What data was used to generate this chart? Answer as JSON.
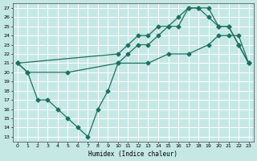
{
  "xlabel": "Humidex (Indice chaleur)",
  "xlim": [
    -0.5,
    23.5
  ],
  "ylim": [
    12.5,
    27.5
  ],
  "yticks": [
    13,
    14,
    15,
    16,
    17,
    18,
    19,
    20,
    21,
    22,
    23,
    24,
    25,
    26,
    27
  ],
  "xticks": [
    0,
    1,
    2,
    3,
    4,
    5,
    6,
    7,
    8,
    9,
    10,
    11,
    12,
    13,
    14,
    15,
    16,
    17,
    18,
    19,
    20,
    21,
    22,
    23
  ],
  "bg_color": "#c5e8e5",
  "grid_color": "#ffffff",
  "line_color": "#1e7060",
  "line1_x": [
    0,
    1,
    2,
    3,
    4,
    5,
    6,
    7,
    8,
    9,
    10,
    11,
    12,
    13,
    14,
    15,
    16,
    17,
    18,
    19,
    20,
    21,
    22,
    23
  ],
  "line1_y": [
    21,
    20,
    17,
    17,
    16,
    15,
    14,
    13,
    16,
    18,
    21,
    22,
    23,
    23,
    24,
    25,
    25,
    27,
    27,
    26,
    25,
    25,
    23,
    21
  ],
  "line2_x": [
    0,
    10,
    11,
    12,
    13,
    14,
    15,
    16,
    17,
    18,
    19,
    20,
    21,
    22,
    23
  ],
  "line2_y": [
    21,
    22,
    23,
    24,
    24,
    25,
    25,
    26,
    27,
    27,
    27,
    25,
    25,
    23,
    21
  ],
  "line3_x": [
    0,
    1,
    5,
    10,
    13,
    15,
    17,
    19,
    20,
    21,
    22,
    23
  ],
  "line3_y": [
    21,
    20,
    20,
    21,
    21,
    22,
    22,
    23,
    24,
    24,
    24,
    21
  ],
  "marker": "D",
  "markersize": 2.5,
  "linewidth": 0.9
}
